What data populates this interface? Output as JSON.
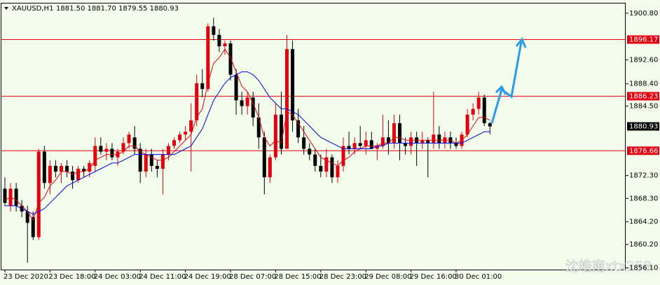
{
  "chart_data": {
    "type": "candlestick",
    "symbol": "XAUUSD,H1",
    "ohlc_text": "1881.50 1881.70 1879.55 1880.93",
    "watermark": "沈皓南xtx258",
    "categories": [
      "23 Dec 2020",
      null,
      null,
      null,
      null,
      null,
      null,
      null,
      "23 Dec 18:00",
      null,
      null,
      null,
      null,
      null,
      null,
      null,
      "24 Dec 03:00",
      null,
      null,
      null,
      null,
      null,
      null,
      null,
      "24 Dec 11:00",
      null,
      null,
      null,
      null,
      null,
      null,
      null,
      "24 Dec 19:00",
      null,
      null,
      null,
      null,
      null,
      null,
      null,
      "28 Dec 07:00",
      null,
      null,
      null,
      null,
      null,
      null,
      null,
      "28 Dec 15:00",
      null,
      null,
      null,
      null,
      null,
      null,
      null,
      "28 Dec 23:00",
      null,
      null,
      null,
      null,
      null,
      null,
      null,
      "29 Dec 08:00",
      null,
      null,
      null,
      null,
      null,
      null,
      null,
      "29 Dec 16:00",
      null,
      null,
      null,
      null,
      null,
      null,
      null,
      "30 Dec 01:00",
      null,
      null,
      null,
      null,
      null,
      null
    ],
    "open": [
      1870,
      1867,
      1870,
      1867,
      1866,
      1865,
      1861.5,
      1876.5,
      1871,
      1874,
      1873,
      1874,
      1873,
      1871.5,
      1873.5,
      1873,
      1874,
      1877.5,
      1876.5,
      1877,
      1875.5,
      1876.5,
      1878,
      1879,
      1877,
      1873,
      1876,
      1874,
      1873.5,
      1876,
      1877.5,
      1878.5,
      1879.5,
      1880,
      1882,
      1888.5,
      1887.5,
      1898.5,
      1897,
      1895,
      1895.5,
      1890,
      1885.5,
      1884.5,
      1886,
      1882.5,
      1879,
      1872,
      1875.5,
      1883,
      1877,
      1894.5,
      1882,
      1879,
      1877,
      1876,
      1874,
      1873,
      1875.5,
      1872,
      1874,
      1877.5,
      1877,
      1878,
      1877.5,
      1878.5,
      1877,
      1877.5,
      1879,
      1878,
      1881.5,
      1878,
      1877.5,
      1879,
      1878,
      1878.5,
      1878,
      1879.5,
      1878,
      1879,
      1878,
      1877.5,
      1879.5,
      1883,
      1884,
      1886,
      1881.5
    ],
    "high": [
      1872,
      1871,
      1871,
      1868,
      1867,
      1866,
      1877,
      1877.5,
      1875,
      1875,
      1874.5,
      1875,
      1874,
      1874,
      1874,
      1875,
      1879,
      1879,
      1878,
      1878,
      1877,
      1879,
      1880,
      1881,
      1878,
      1877,
      1877,
      1875,
      1877,
      1878,
      1879,
      1880,
      1881,
      1885,
      1890,
      1891,
      1899,
      1900,
      1898,
      1896,
      1896,
      1891,
      1887,
      1887,
      1887,
      1885,
      1880,
      1876,
      1885,
      1887,
      1897,
      1896,
      1884,
      1881,
      1878,
      1877,
      1876,
      1877,
      1876,
      1875,
      1879,
      1880,
      1879,
      1881,
      1880,
      1880,
      1878,
      1883,
      1882,
      1883,
      1883,
      1879,
      1880,
      1880,
      1880,
      1879,
      1887,
      1881,
      1880,
      1880,
      1879,
      1880,
      1884,
      1885,
      1887,
      1886.5,
      1881.7
    ],
    "low": [
      1867,
      1866,
      1866,
      1865,
      1857,
      1861,
      1861,
      1870,
      1869,
      1872,
      1871,
      1872,
      1870,
      1871,
      1872,
      1872,
      1873,
      1876,
      1875,
      1875,
      1874,
      1876,
      1877,
      1876,
      1871,
      1872,
      1873,
      1872,
      1869,
      1875,
      1877,
      1878,
      1878.5,
      1873,
      1881,
      1886,
      1887,
      1896,
      1894,
      1893.5,
      1889,
      1883,
      1883,
      1883,
      1881,
      1877,
      1869,
      1871,
      1875,
      1876,
      1877,
      1880,
      1878,
      1876,
      1875,
      1873,
      1872,
      1872,
      1871,
      1871,
      1873,
      1876,
      1876,
      1877,
      1876,
      1877,
      1875,
      1877,
      1876,
      1877,
      1875,
      1876,
      1876,
      1874,
      1877,
      1872,
      1877,
      1877,
      1877,
      1877,
      1877,
      1877,
      1879,
      1882,
      1883,
      1881,
      1879.55
    ],
    "close": [
      1867.5,
      1870,
      1867,
      1866,
      1864,
      1861.5,
      1876.5,
      1871,
      1874,
      1873,
      1874,
      1873,
      1871.5,
      1873.5,
      1873,
      1874.5,
      1877.5,
      1876.5,
      1877,
      1875.5,
      1876.5,
      1878,
      1879.5,
      1877,
      1873,
      1876,
      1874,
      1873.5,
      1876,
      1877.5,
      1878.5,
      1879.5,
      1880,
      1882,
      1888.5,
      1887.5,
      1898.5,
      1897,
      1895,
      1895.5,
      1890,
      1885.5,
      1884.5,
      1886,
      1882.5,
      1879,
      1872,
      1875.5,
      1883,
      1877,
      1894.5,
      1882,
      1879,
      1877,
      1876,
      1874,
      1873,
      1875.5,
      1872,
      1874,
      1877.5,
      1877,
      1878,
      1877.5,
      1878.5,
      1877,
      1877.5,
      1879,
      1878,
      1881.5,
      1878,
      1877.5,
      1879,
      1878,
      1878.5,
      1878,
      1879.5,
      1878,
      1879,
      1878,
      1877.5,
      1879.5,
      1883,
      1884,
      1886,
      1881.5,
      1880.93
    ],
    "up_color": "#e4000f",
    "down_color": "#000000",
    "lines": [
      {
        "color": "#e4000f",
        "values": [
          1868,
          1868.5,
          1868,
          1867,
          1866,
          1864.5,
          1867.5,
          1868.5,
          1870.5,
          1871.5,
          1873,
          1873,
          1872.5,
          1873,
          1873,
          1873.5,
          1875,
          1875.5,
          1876,
          1876,
          1876,
          1876.5,
          1877.5,
          1877.5,
          1876.5,
          1876,
          1875.5,
          1875,
          1875,
          1875.5,
          1876.5,
          1877.5,
          1878.5,
          1879.5,
          1882.5,
          1884,
          1888.5,
          1892,
          1893,
          1894.5,
          1893,
          1890.5,
          1888,
          1887,
          1885,
          1882.5,
          1879,
          1877.5,
          1878.5,
          1878,
          1883.5,
          1883,
          1881.5,
          1880,
          1878.5,
          1877,
          1875.5,
          1875,
          1874.5,
          1874,
          1875,
          1875.5,
          1876.5,
          1877,
          1877.5,
          1877.5,
          1877.5,
          1878,
          1878,
          1879,
          1879,
          1878.5,
          1878.5,
          1878.5,
          1878.5,
          1878.5,
          1878.5,
          1878.5,
          1878.5,
          1878.5,
          1878,
          1878.5,
          1879.5,
          1881,
          1882.5,
          1882.5,
          1882
        ]
      },
      {
        "color": "#0000e0",
        "values": [
          1867,
          1867,
          1867,
          1866.5,
          1866,
          1865.5,
          1866,
          1866.5,
          1867.5,
          1868.5,
          1869.5,
          1870.5,
          1871,
          1871.5,
          1872,
          1872.5,
          1873,
          1873.5,
          1874,
          1874.5,
          1874.5,
          1875,
          1875.5,
          1876,
          1876,
          1876,
          1876,
          1876,
          1876,
          1876,
          1876,
          1876.5,
          1877,
          1877.5,
          1879,
          1880.5,
          1883,
          1885.5,
          1887,
          1888.5,
          1889.5,
          1890,
          1890.5,
          1890.5,
          1890,
          1889,
          1887.5,
          1886,
          1885,
          1884,
          1884,
          1883.5,
          1883,
          1882,
          1881,
          1880,
          1879,
          1878.5,
          1878,
          1877.5,
          1877,
          1877,
          1877,
          1877,
          1877,
          1877,
          1877.5,
          1877.5,
          1878,
          1878,
          1878,
          1878,
          1878,
          1878,
          1878,
          1878,
          1878,
          1878,
          1878,
          1878,
          1878,
          1878,
          1878.5,
          1879,
          1879.5,
          1880,
          1880
        ]
      }
    ],
    "levels": [
      1896.17,
      1886.23,
      1876.66
    ],
    "level_color": "#e4000f",
    "last_price": 1880.93,
    "ylim": [
      1855.8,
      1902.5
    ],
    "yticks": [
      {
        "value": 1900.8,
        "label": "1900.80"
      },
      {
        "value": 1892.6,
        "label": "1892.60"
      },
      {
        "value": 1888.4,
        "label": "1888.40"
      },
      {
        "value": 1884.5,
        "label": "1884.50"
      },
      {
        "value": 1872.3,
        "label": "1872.30"
      },
      {
        "value": 1868.3,
        "label": "1868.30"
      },
      {
        "value": 1864.2,
        "label": "1864.20"
      },
      {
        "value": 1860.2,
        "label": "1860.20"
      },
      {
        "value": 1856.1,
        "label": "1856.10"
      }
    ]
  }
}
